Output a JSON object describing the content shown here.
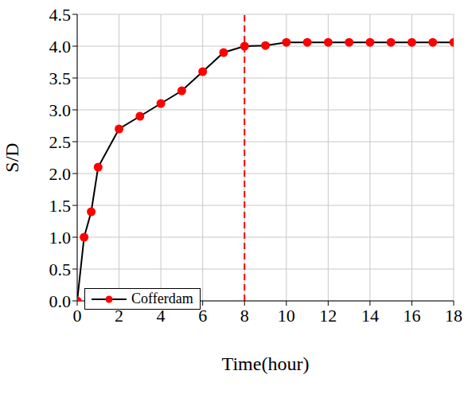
{
  "chart_data": {
    "type": "line",
    "x_label": "Time(hour)",
    "y_label": "S/D",
    "xlim": [
      0,
      18
    ],
    "xticks": [
      0,
      2,
      4,
      6,
      8,
      10,
      12,
      14,
      16,
      18
    ],
    "ylim": [
      0,
      4.5
    ],
    "yticks": [
      {
        "value": 0,
        "label": "0.0"
      },
      0.5,
      {
        "value": 1,
        "label": "1.0"
      },
      1.5,
      {
        "value": 2,
        "label": "2.0"
      },
      2.5,
      {
        "value": 3,
        "label": "3.0"
      },
      3.5,
      {
        "value": 4,
        "label": "4.0"
      },
      4.5
    ],
    "grid": true,
    "legend": "lower left",
    "reference_x": 8,
    "series": [
      {
        "name": "Cofferdam",
        "color": "#ff0000",
        "marker": "circle",
        "line_style": "solid",
        "x": [
          0,
          0.33,
          0.67,
          1,
          2,
          3,
          4,
          5,
          6,
          7,
          8,
          9,
          10,
          11,
          12,
          13,
          14,
          15,
          16,
          17,
          18
        ],
        "values": [
          0,
          1.0,
          1.4,
          2.1,
          2.7,
          2.9,
          3.1,
          3.3,
          3.6,
          3.9,
          4.0,
          4.01,
          4.06,
          4.06,
          4.06,
          4.06,
          4.06,
          4.06,
          4.06,
          4.06,
          4.06
        ]
      }
    ]
  }
}
